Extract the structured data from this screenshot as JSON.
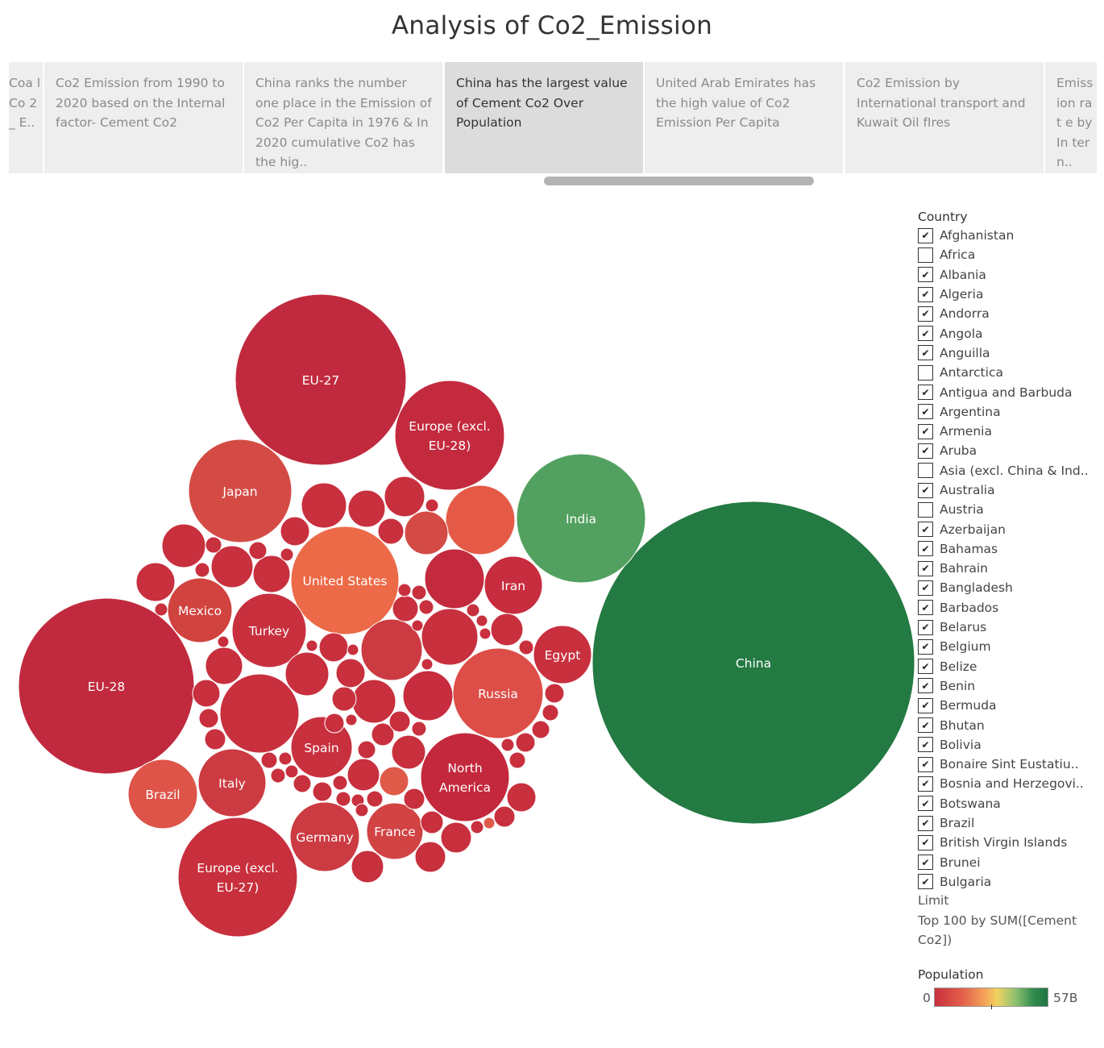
{
  "title": "Analysis of Co2_Emission",
  "story_points": [
    {
      "text": "Coa l Co 2 _ E..",
      "active": false
    },
    {
      "text": "Co2 Emission from 1990 to 2020  based on the Internal factor- Cement Co2",
      "active": false
    },
    {
      "text": "China ranks the number one place in the Emission of Co2 Per Capita in 1976 & In 2020 cumulative Co2 has the hig..",
      "active": false
    },
    {
      "text": "China has the largest value of Cement Co2 Over Population",
      "active": true
    },
    {
      "text": "United Arab Emirates has the high value  of Co2 Emission Per Capita",
      "active": false
    },
    {
      "text": "Co2 Emission by International transport and Kuwait Oil  fIres",
      "active": false
    },
    {
      "text": "Emiss ion rat e by In tern..",
      "active": false
    }
  ],
  "chart_data": {
    "type": "packed-bubble",
    "size_measure": "SUM([Cement Co2])",
    "color_measure": "Population",
    "color_range": [
      "#c8303e",
      "#1f7542"
    ],
    "labeled_bubbles": [
      "China",
      "EU-28",
      "EU-27",
      "India",
      "Europe (excl. EU-28)",
      "Japan",
      "United States",
      "Europe (excl. EU-27)",
      "North America",
      "Russia",
      "Iran",
      "Egypt",
      "Mexico",
      "Turkey",
      "Brazil",
      "Italy",
      "Spain",
      "Germany",
      "France"
    ]
  },
  "filter": {
    "title": "Country",
    "items": [
      {
        "label": "Afghanistan",
        "checked": true
      },
      {
        "label": "Africa",
        "checked": false
      },
      {
        "label": "Albania",
        "checked": true
      },
      {
        "label": "Algeria",
        "checked": true
      },
      {
        "label": "Andorra",
        "checked": true
      },
      {
        "label": "Angola",
        "checked": true
      },
      {
        "label": "Anguilla",
        "checked": true
      },
      {
        "label": "Antarctica",
        "checked": false
      },
      {
        "label": "Antigua and Barbuda",
        "checked": true
      },
      {
        "label": "Argentina",
        "checked": true
      },
      {
        "label": "Armenia",
        "checked": true
      },
      {
        "label": "Aruba",
        "checked": true
      },
      {
        "label": "Asia (excl. China & Ind..",
        "checked": false
      },
      {
        "label": "Australia",
        "checked": true
      },
      {
        "label": "Austria",
        "checked": false
      },
      {
        "label": "Azerbaijan",
        "checked": true
      },
      {
        "label": "Bahamas",
        "checked": true
      },
      {
        "label": "Bahrain",
        "checked": true
      },
      {
        "label": "Bangladesh",
        "checked": true
      },
      {
        "label": "Barbados",
        "checked": true
      },
      {
        "label": "Belarus",
        "checked": true
      },
      {
        "label": "Belgium",
        "checked": true
      },
      {
        "label": "Belize",
        "checked": true
      },
      {
        "label": "Benin",
        "checked": true
      },
      {
        "label": "Bermuda",
        "checked": true
      },
      {
        "label": "Bhutan",
        "checked": true
      },
      {
        "label": "Bolivia",
        "checked": true
      },
      {
        "label": "Bonaire Sint Eustatiu..",
        "checked": true
      },
      {
        "label": "Bosnia and Herzegovi..",
        "checked": true
      },
      {
        "label": "Botswana",
        "checked": true
      },
      {
        "label": "Brazil",
        "checked": true
      },
      {
        "label": "British Virgin Islands",
        "checked": true
      },
      {
        "label": "Brunei",
        "checked": true
      },
      {
        "label": "Bulgaria",
        "checked": true
      }
    ]
  },
  "limit": {
    "title": "Limit",
    "text": "Top 100 by SUM([Cement Co2])"
  },
  "population_legend": {
    "title": "Population",
    "min": "0",
    "max": "57B"
  }
}
